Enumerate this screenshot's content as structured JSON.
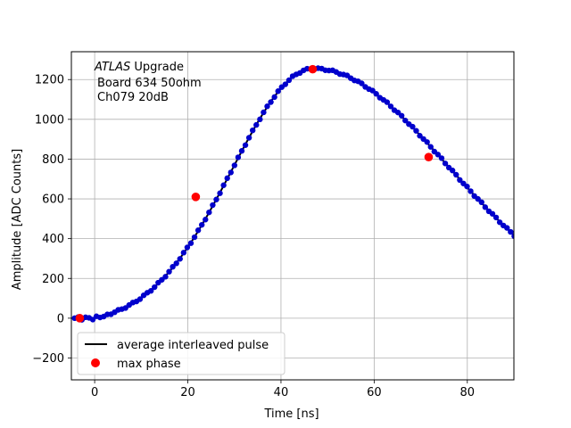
{
  "chart_data": {
    "type": "scatter",
    "xlabel": "Time [ns]",
    "ylabel": "Amplitude [ADC Counts]",
    "xlim": [
      -5,
      90
    ],
    "ylim": [
      -310,
      1340
    ],
    "xticks": [
      0,
      20,
      40,
      60,
      80
    ],
    "yticks": [
      -200,
      0,
      200,
      400,
      600,
      800,
      1000,
      1200
    ],
    "grid": true,
    "legend_position": "lower-left",
    "annotation": {
      "italic_part": "ATLAS",
      "line1_rest": " Upgrade",
      "line2": "Board 634 50ohm",
      "line3": "Ch079 20dB"
    },
    "pulse_model": {
      "t0": 0,
      "peak_time": 47,
      "peak_amplitude": 1255,
      "rise_sigma": 17.5,
      "fall_sigma": 29,
      "sample_step": 0.78
    },
    "series": [
      {
        "name": "average interleaved pulse",
        "style": "line",
        "color": "#000000"
      },
      {
        "name": "",
        "style": "markers",
        "color": "#0000cc"
      },
      {
        "name": "max phase",
        "style": "markers",
        "color": "#ff0000",
        "x": [
          -3.2,
          21.7,
          46.8,
          71.7
        ],
        "y": [
          0,
          610,
          1252,
          810
        ]
      }
    ]
  }
}
